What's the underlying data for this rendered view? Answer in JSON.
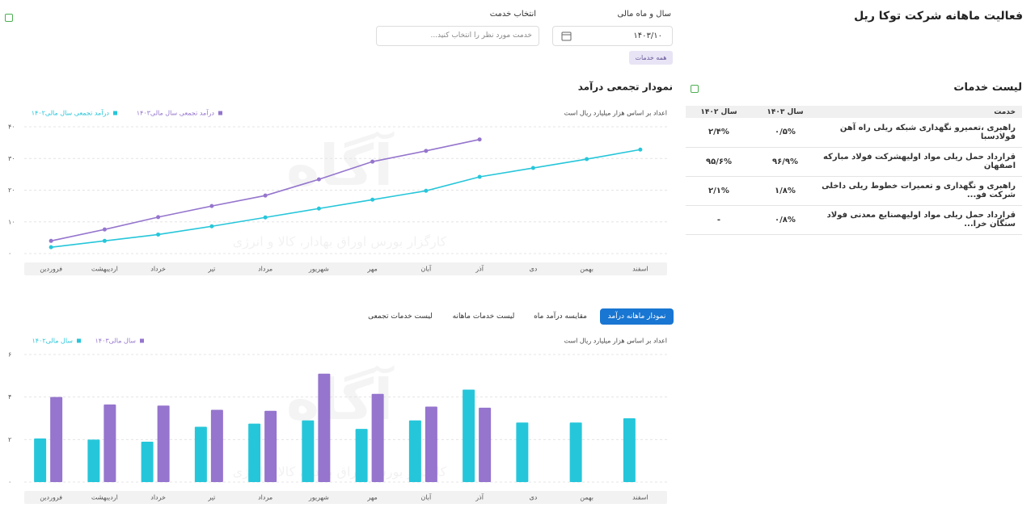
{
  "header": {
    "title": "فعالیت ماهانه شرکت توکا ریل"
  },
  "filters": {
    "period_label": "سال و ماه مالی",
    "period_value": "۱۴۰۳/۱۰",
    "service_label": "انتخاب خدمت",
    "service_placeholder": "خدمت مورد نظر را انتخاب کنید...",
    "chip": "همه خدمات"
  },
  "watermark": {
    "logo": "آگاه",
    "tagline": "کارگزار بورس اوراق بهادار، کالا و انرژی"
  },
  "services": {
    "title": "لیست خدمات",
    "columns": [
      "خدمت",
      "سال ۱۴۰۳",
      "سال ۱۴۰۲"
    ],
    "rows": [
      [
        "راهبری ،تعمیرو نگهداری شبکه ریلی راه آهن فولادسبا",
        "۰/۵%",
        "۲/۴%"
      ],
      [
        "قرارداد حمل ریلی مواد اولیهشرکت فولاد مبارکه اصفهان",
        "۹۶/۹%",
        "۹۵/۶%"
      ],
      [
        "راهبری و نگهداری و تعمیرات خطوط ریلی داخلی شرکت فو...",
        "۱/۸%",
        "۲/۱%"
      ],
      [
        "قرارداد حمل ریلی مواد اولیهصنایع معدنی فولاد سنگان خرا...",
        "۰/۸%",
        "-"
      ]
    ]
  },
  "tabs": [
    "نمودار ماهانه درآمد",
    "مقایسه درآمد ماه",
    "لیست خدمات ماهانه",
    "لیست خدمات تجمعی"
  ],
  "chart_data": [
    {
      "type": "line",
      "title": "نمودار تجمعی درآمد",
      "note": "اعداد بر اساس هزار میلیارد ریال است",
      "categories": [
        "فروردین",
        "اردیبهشت",
        "خرداد",
        "تیر",
        "مرداد",
        "شهریور",
        "مهر",
        "آبان",
        "آذر",
        "دی",
        "بهمن",
        "اسفند"
      ],
      "series": [
        {
          "name": "درآمد تجمعی سال مالی۱۴۰۳",
          "color": "#9575cd",
          "values": [
            4,
            7.6,
            11.5,
            15,
            18.3,
            23.4,
            29,
            32.4,
            36,
            null,
            null,
            null
          ]
        },
        {
          "name": "درآمد تجمعی سال مالی۱۴۰۲",
          "color": "#26c6da",
          "values": [
            2,
            4,
            6,
            8.6,
            11.4,
            14.2,
            17,
            19.8,
            24.2,
            27,
            29.8,
            32.8
          ]
        }
      ],
      "ylim": [
        0,
        40
      ],
      "yticks": [
        {
          "value": 0,
          "label": "۰"
        },
        {
          "value": 10,
          "label": "۱۰"
        },
        {
          "value": 20,
          "label": "۲۰"
        },
        {
          "value": 30,
          "label": "۳۰"
        },
        {
          "value": 40,
          "label": "۴۰"
        }
      ],
      "grid": true
    },
    {
      "type": "bar",
      "note": "اعداد بر اساس هزار میلیارد ریال است",
      "categories": [
        "فروردین",
        "اردیبهشت",
        "خرداد",
        "تیر",
        "مرداد",
        "شهریور",
        "مهر",
        "آبان",
        "آذر",
        "دی",
        "بهمن",
        "اسفند"
      ],
      "series": [
        {
          "name": "سال مالی۱۴۰۳",
          "color": "#9575cd",
          "values": [
            4,
            3.65,
            3.6,
            3.4,
            3.35,
            5.1,
            4.15,
            3.55,
            3.5,
            null,
            null,
            null
          ]
        },
        {
          "name": "سال مالی۱۴۰۲",
          "color": "#26c6da",
          "values": [
            2.05,
            2,
            1.9,
            2.6,
            2.75,
            2.9,
            2.5,
            2.9,
            4.35,
            2.8,
            2.8,
            3
          ]
        }
      ],
      "ylim": [
        0,
        6
      ],
      "yticks": [
        {
          "value": 0,
          "label": "۰"
        },
        {
          "value": 2,
          "label": "۲"
        },
        {
          "value": 4,
          "label": "۴"
        },
        {
          "value": 6,
          "label": "۶"
        }
      ],
      "grid": true
    }
  ]
}
